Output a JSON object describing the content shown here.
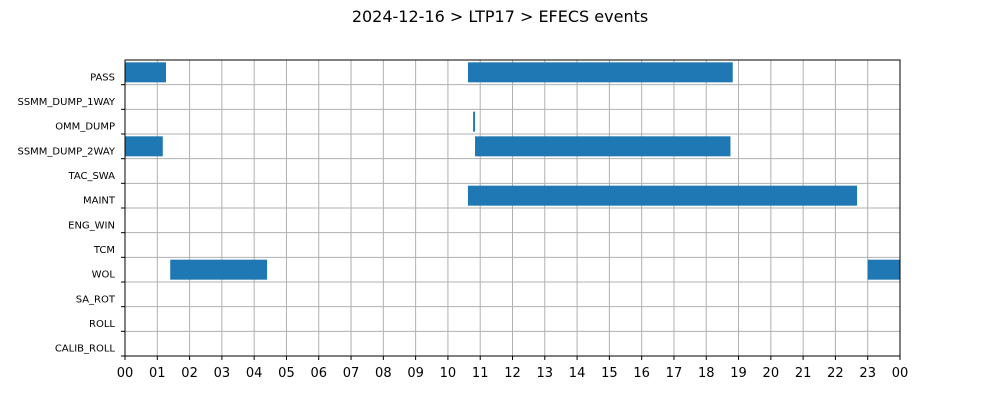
{
  "chart_data": {
    "type": "bar",
    "orientation": "horizontal-timeline",
    "title": "2024-12-16 > LTP17 > EFECS events",
    "categories": [
      "PASS",
      "SSMM_DUMP_1WAY",
      "OMM_DUMP",
      "SSMM_DUMP_2WAY",
      "TAC_SWA",
      "MAINT",
      "ENG_WIN",
      "TCM",
      "WOL",
      "SA_ROT",
      "ROLL",
      "CALIB_ROLL"
    ],
    "x_ticks": [
      "00",
      "01",
      "02",
      "03",
      "04",
      "05",
      "06",
      "07",
      "08",
      "09",
      "10",
      "11",
      "12",
      "13",
      "14",
      "15",
      "16",
      "17",
      "18",
      "19",
      "20",
      "21",
      "22",
      "23",
      "00"
    ],
    "xlim": [
      0,
      24
    ],
    "grid": true,
    "bar_color": "#1f77b4",
    "events": [
      {
        "category": "PASS",
        "start": 0.0,
        "end": 1.27
      },
      {
        "category": "PASS",
        "start": 10.62,
        "end": 18.82
      },
      {
        "category": "OMM_DUMP",
        "start": 10.78,
        "end": 10.84
      },
      {
        "category": "SSMM_DUMP_2WAY",
        "start": 0.0,
        "end": 1.17
      },
      {
        "category": "SSMM_DUMP_2WAY",
        "start": 10.84,
        "end": 18.75
      },
      {
        "category": "MAINT",
        "start": 10.62,
        "end": 22.67
      },
      {
        "category": "WOL",
        "start": 1.4,
        "end": 4.4
      },
      {
        "category": "WOL",
        "start": 23.0,
        "end": 24.0
      }
    ]
  }
}
